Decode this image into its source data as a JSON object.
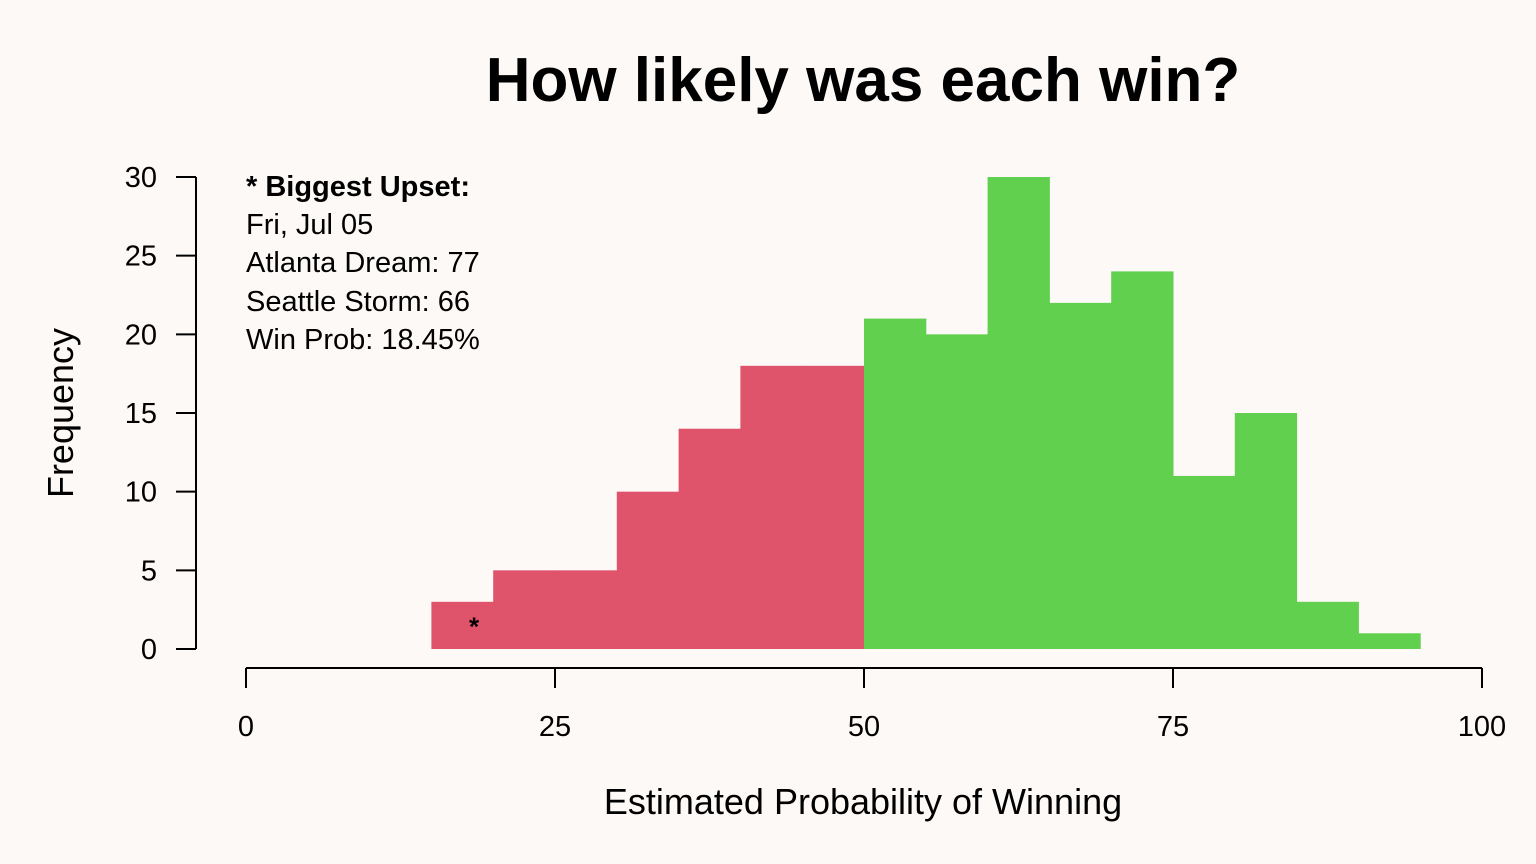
{
  "chart_data": {
    "type": "bar",
    "title": "How likely was each win?",
    "xlabel": "Estimated Probability of Winning",
    "ylabel": "Frequency",
    "xlim": [
      0,
      100
    ],
    "ylim": [
      0,
      30
    ],
    "xticks": [
      0,
      25,
      50,
      75,
      100
    ],
    "yticks": [
      0,
      5,
      10,
      15,
      20,
      25,
      30
    ],
    "bin_width": 5,
    "bins": [
      {
        "start": 15,
        "end": 20,
        "value": 3
      },
      {
        "start": 20,
        "end": 25,
        "value": 5
      },
      {
        "start": 25,
        "end": 30,
        "value": 5
      },
      {
        "start": 30,
        "end": 35,
        "value": 10
      },
      {
        "start": 35,
        "end": 40,
        "value": 14
      },
      {
        "start": 40,
        "end": 45,
        "value": 18
      },
      {
        "start": 45,
        "end": 50,
        "value": 18
      },
      {
        "start": 50,
        "end": 55,
        "value": 21
      },
      {
        "start": 55,
        "end": 60,
        "value": 20
      },
      {
        "start": 60,
        "end": 65,
        "value": 30
      },
      {
        "start": 65,
        "end": 70,
        "value": 22
      },
      {
        "start": 70,
        "end": 75,
        "value": 24
      },
      {
        "start": 75,
        "end": 80,
        "value": 11
      },
      {
        "start": 80,
        "end": 85,
        "value": 15
      },
      {
        "start": 85,
        "end": 90,
        "value": 3
      },
      {
        "start": 90,
        "end": 95,
        "value": 1
      }
    ],
    "split_at": 50,
    "colors": {
      "below_split": "#DF536B",
      "above_split": "#61D04F",
      "background": "#FDF9F6",
      "axis": "#000000"
    },
    "grid": false,
    "upset_marker": {
      "x": 18.45,
      "y": 2,
      "symbol": "*"
    },
    "annotation": {
      "heading": "* Biggest Upset:",
      "lines": [
        "Fri, Jul 05",
        "Atlanta Dream: 77",
        "Seattle Storm: 66",
        "Win Prob: 18.45%"
      ]
    }
  }
}
